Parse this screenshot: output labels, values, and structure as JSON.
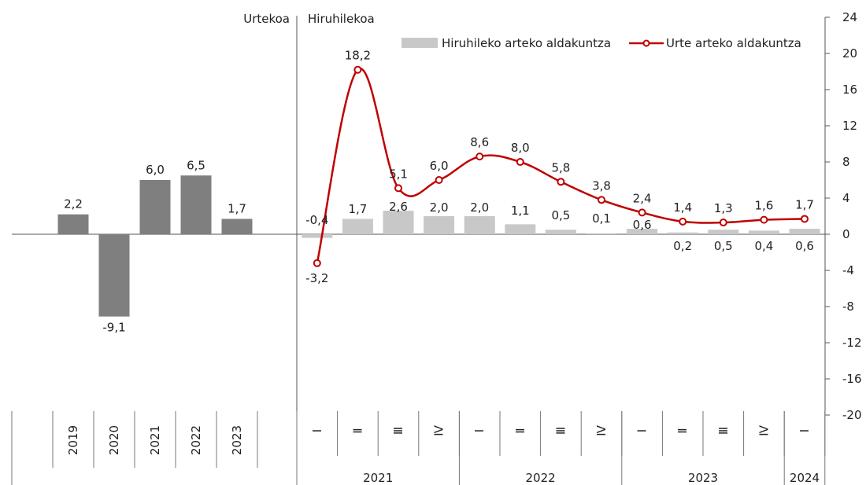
{
  "chart_data": {
    "type": "bar",
    "ylim": [
      -20,
      24
    ],
    "yticks": [
      24,
      20,
      16,
      12,
      8,
      4,
      0,
      -4,
      -8,
      -12,
      -16,
      -20
    ],
    "grid": false,
    "legend_position": "top-right",
    "colors": {
      "annual_bar": "#7f7f7f",
      "quarterly_bar": "#c8c8c8",
      "line": "#c00000",
      "marker_fill": "#ffffff"
    },
    "panel_labels": {
      "annual": "Urtekoa",
      "quarterly": "Hiruhilekoa"
    },
    "annual": {
      "categories": [
        "2019",
        "2020",
        "2021",
        "2022",
        "2023"
      ],
      "values": [
        2.2,
        -9.1,
        6.0,
        6.5,
        1.7
      ],
      "value_labels": [
        "2,2",
        "-9,1",
        "6,0",
        "6,5",
        "1,7"
      ]
    },
    "quarterly": {
      "quarters": [
        "I",
        "II",
        "III",
        "IV",
        "I",
        "II",
        "III",
        "IV",
        "I",
        "II",
        "III",
        "IV",
        "I"
      ],
      "quarter_glyphs": [
        "Ⅰ",
        "Ⅱ",
        "Ⅲ",
        "Ⅳ",
        "Ⅰ",
        "Ⅱ",
        "Ⅲ",
        "Ⅳ",
        "Ⅰ",
        "Ⅱ",
        "Ⅲ",
        "Ⅳ",
        "Ⅰ"
      ],
      "years": [
        {
          "label": "2021",
          "quarters": 4
        },
        {
          "label": "2022",
          "quarters": 4
        },
        {
          "label": "2023",
          "quarters": 4
        },
        {
          "label": "2024",
          "quarters": 1
        }
      ],
      "series": [
        {
          "name": "Hiruhileko arteko aldakuntza",
          "type": "bar",
          "values": [
            -0.4,
            1.7,
            2.6,
            2.0,
            2.0,
            1.1,
            0.5,
            0.1,
            0.6,
            0.2,
            0.5,
            0.4,
            0.6
          ],
          "value_labels": [
            "-0,4",
            "1,7",
            "2,6",
            "2,0",
            "2,0",
            "1,1",
            "0,5",
            "0,1",
            "0,6",
            "0,2",
            "0,5",
            "0,4",
            "0,6"
          ]
        },
        {
          "name": "Urte arteko aldakuntza",
          "type": "line",
          "values": [
            -3.2,
            18.2,
            5.1,
            6.0,
            8.6,
            8.0,
            5.8,
            3.8,
            2.4,
            1.4,
            1.3,
            1.6,
            1.7
          ],
          "value_labels": [
            "-3,2",
            "18,2",
            "5,1",
            "6,0",
            "8,6",
            "8,0",
            "5,8",
            "3,8",
            "2,4",
            "1,4",
            "1,3",
            "1,6",
            "1,7"
          ]
        }
      ]
    }
  }
}
